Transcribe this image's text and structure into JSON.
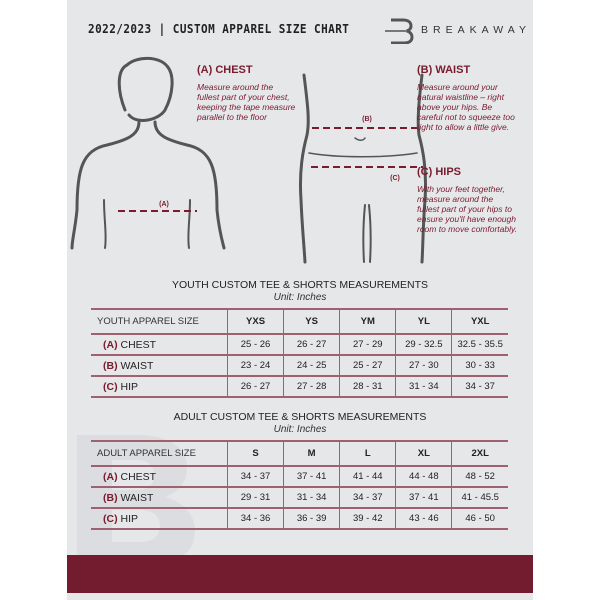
{
  "header": {
    "title": "2022/2023  |  CUSTOM APPAREL SIZE CHART",
    "brand": "BREAKAWAY",
    "logo_letter": "B"
  },
  "guides": {
    "chest": {
      "title": "(A) CHEST",
      "marker": "(A)",
      "text": "Measure around the fullest part of your chest, keeping the tape measure parallel to the floor"
    },
    "waist": {
      "title": "(B) WAIST",
      "marker": "(B)",
      "text": "Measure around your natural waistline – right above your hips. Be careful not to squeeze too tight to allow a little give."
    },
    "hips": {
      "title": "(C) HIPS",
      "marker": "(C)",
      "text": "With your feet together, measure around the fullest part of your hips to ensure you'll have enough room to move comfortably."
    }
  },
  "youth": {
    "title": "YOUTH CUSTOM TEE & SHORTS MEASUREMENTS",
    "unit": "Unit: Inches",
    "header": "YOUTH APPAREL SIZE",
    "sizes": [
      "YXS",
      "YS",
      "YM",
      "YL",
      "YXL"
    ],
    "rows": [
      {
        "code": "(A)",
        "label": "CHEST",
        "values": [
          "25 - 26",
          "26 - 27",
          "27 - 29",
          "29 - 32.5",
          "32.5 - 35.5"
        ]
      },
      {
        "code": "(B)",
        "label": "WAIST",
        "values": [
          "23 - 24",
          "24 - 25",
          "25 - 27",
          "27 - 30",
          "30 - 33"
        ]
      },
      {
        "code": "(C)",
        "label": "HIP",
        "values": [
          "26 - 27",
          "27 - 28",
          "28 - 31",
          "31 - 34",
          "34 - 37"
        ]
      }
    ]
  },
  "adult": {
    "title": "ADULT CUSTOM TEE & SHORTS MEASUREMENTS",
    "unit": "Unit: Inches",
    "header": "ADULT APPAREL SIZE",
    "sizes": [
      "S",
      "M",
      "L",
      "XL",
      "2XL"
    ],
    "rows": [
      {
        "code": "(A)",
        "label": "CHEST",
        "values": [
          "34 - 37",
          "37 - 41",
          "41 - 44",
          "44 - 48",
          "48 - 52"
        ]
      },
      {
        "code": "(B)",
        "label": "WAIST",
        "values": [
          "29 - 31",
          "31 - 34",
          "34 - 37",
          "37 - 41",
          "41 - 45.5"
        ]
      },
      {
        "code": "(C)",
        "label": "HIP",
        "values": [
          "34 - 36",
          "36 - 39",
          "39 - 42",
          "43 - 46",
          "46 - 50"
        ]
      }
    ]
  },
  "colors": {
    "accent": "#7a1b2e",
    "background": "#e6e7e9",
    "band": "#731b2f"
  }
}
